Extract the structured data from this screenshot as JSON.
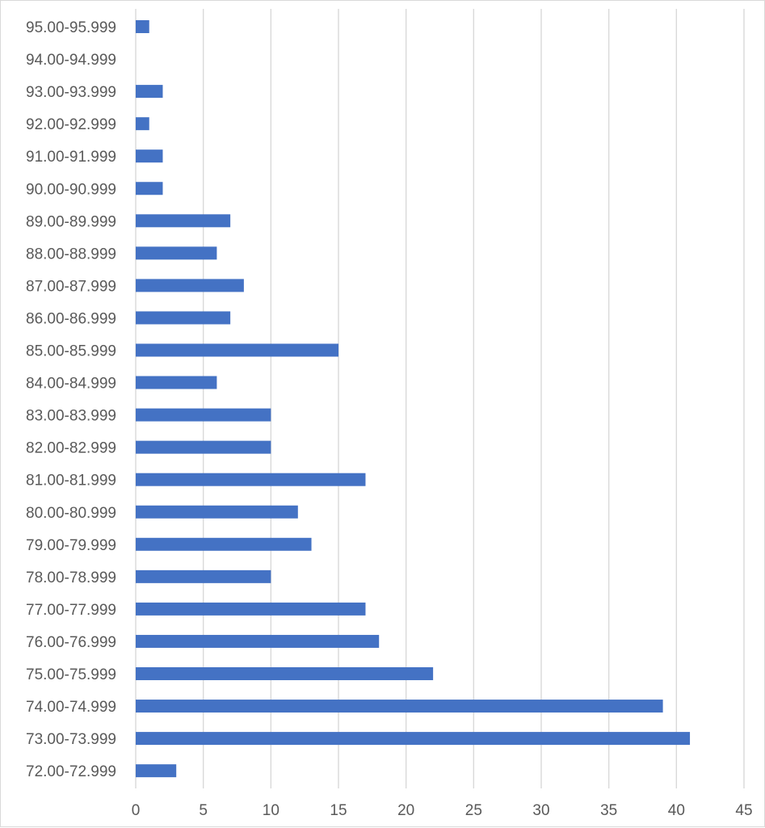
{
  "chart_data": {
    "type": "bar",
    "orientation": "horizontal",
    "title": "",
    "xlabel": "",
    "ylabel": "",
    "categories": [
      "72.00-72.999",
      "73.00-73.999",
      "74.00-74.999",
      "75.00-75.999",
      "76.00-76.999",
      "77.00-77.999",
      "78.00-78.999",
      "79.00-79.999",
      "80.00-80.999",
      "81.00-81.999",
      "82.00-82.999",
      "83.00-83.999",
      "84.00-84.999",
      "85.00-85.999",
      "86.00-86.999",
      "87.00-87.999",
      "88.00-88.999",
      "89.00-89.999",
      "90.00-90.999",
      "91.00-91.999",
      "92.00-92.999",
      "93.00-93.999",
      "94.00-94.999",
      "95.00-95.999"
    ],
    "values": [
      3,
      41,
      39,
      22,
      18,
      17,
      10,
      13,
      12,
      17,
      10,
      10,
      6,
      15,
      7,
      8,
      6,
      7,
      2,
      2,
      1,
      2,
      0,
      1
    ],
    "xlim": [
      0,
      45
    ],
    "xticks": [
      "0",
      "5",
      "10",
      "15",
      "20",
      "25",
      "30",
      "35",
      "40",
      "45"
    ],
    "grid": "vertical",
    "legend": "none",
    "bar_color": "#4472c4",
    "grid_color": "#d9d9d9",
    "label_color": "#595959"
  }
}
